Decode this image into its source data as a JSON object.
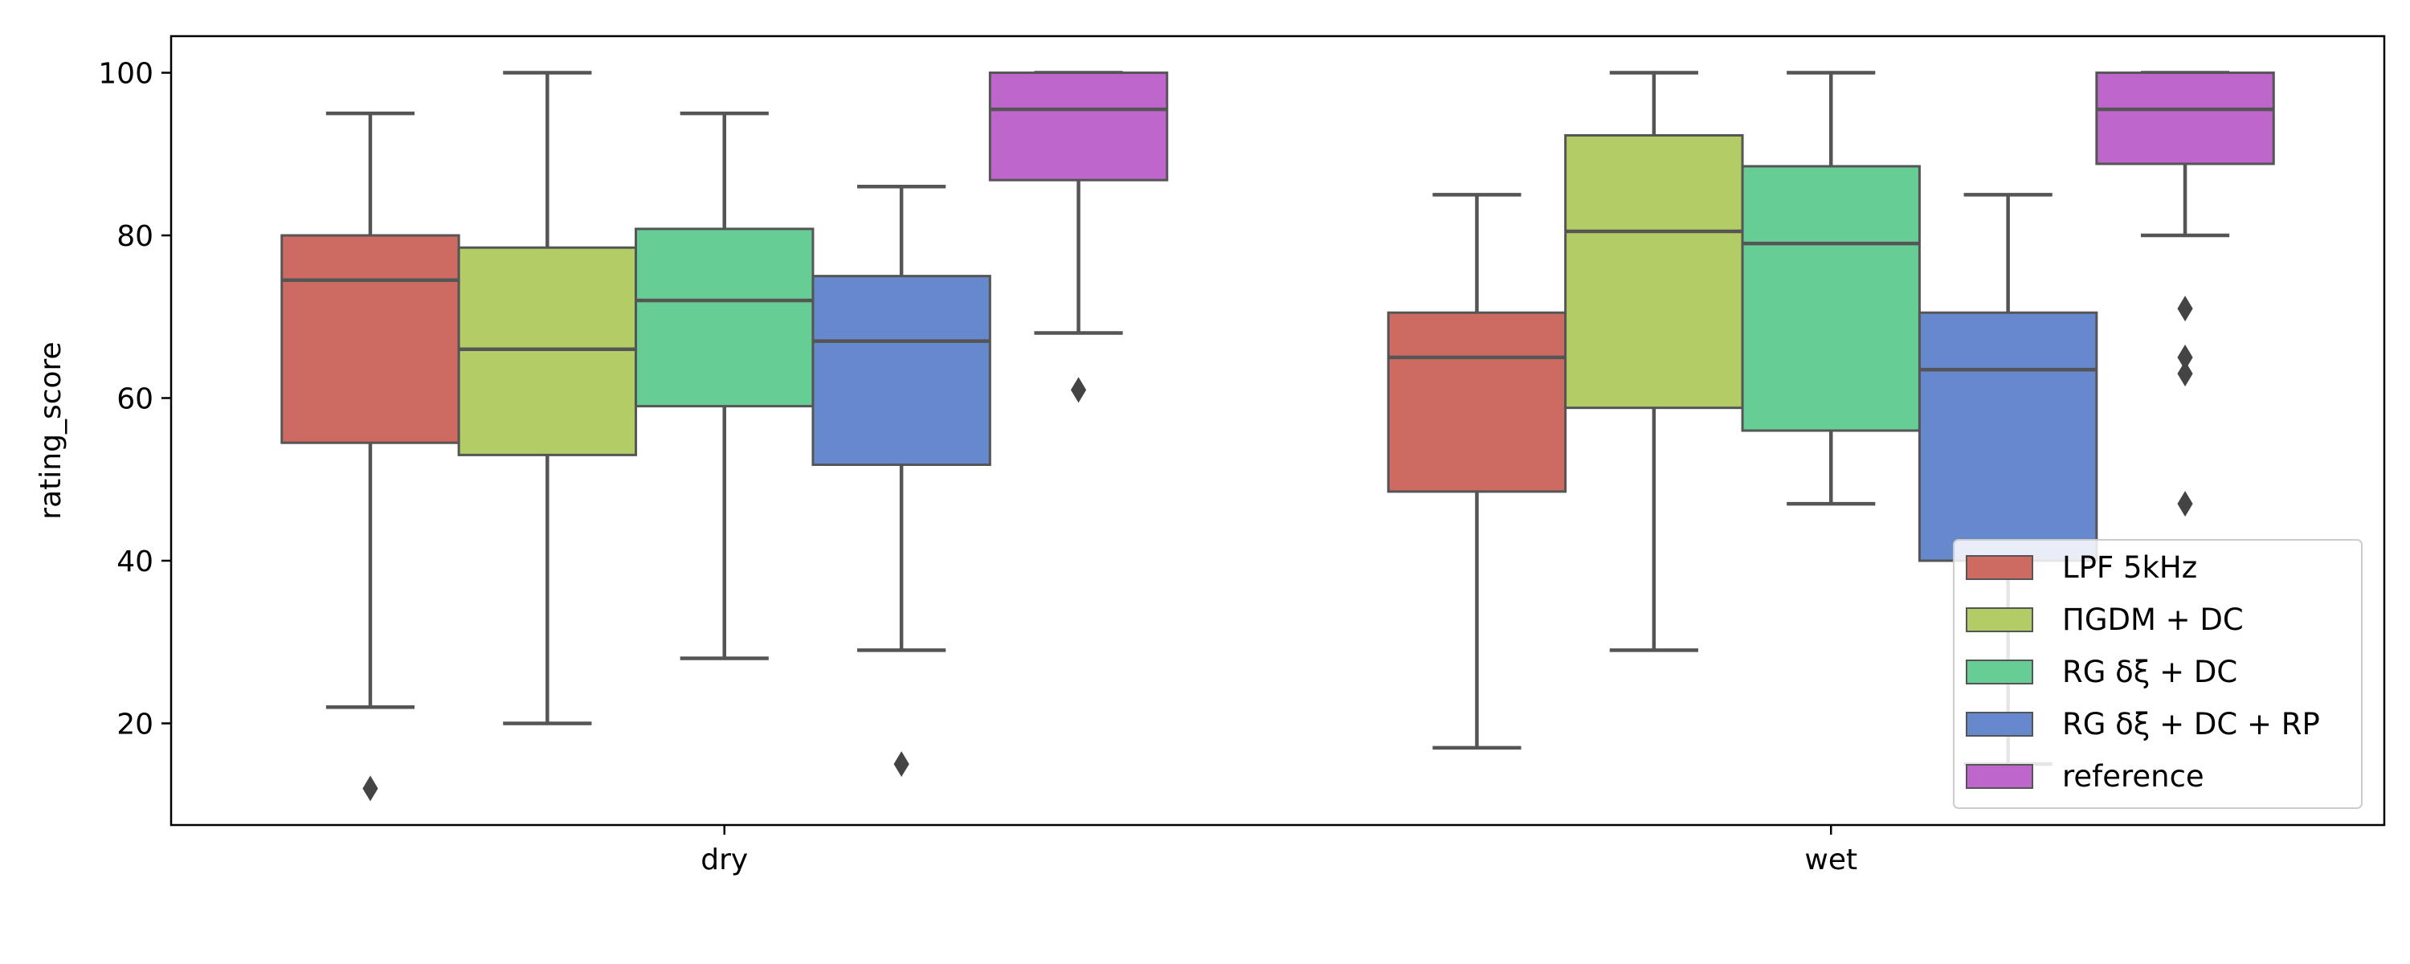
{
  "chart_data": {
    "type": "box",
    "title": "",
    "xlabel": "",
    "ylabel": "rating_score",
    "ylim": [
      7.5,
      104.5
    ],
    "yticks": [
      20,
      40,
      60,
      80,
      100
    ],
    "categories": [
      "dry",
      "wet"
    ],
    "grid": false,
    "legend_position": "lower-right",
    "series": [
      {
        "name": "LPF 5kHz",
        "legend_label": "LPF 5kHz",
        "color": "#cd6b63",
        "boxes": [
          {
            "whisker_low": 22,
            "q1": 54.5,
            "median": 74.5,
            "q3": 80,
            "whisker_high": 95,
            "outliers": [
              12
            ]
          },
          {
            "whisker_low": 17,
            "q1": 48.5,
            "median": 65,
            "q3": 70.5,
            "whisker_high": 85,
            "outliers": []
          }
        ]
      },
      {
        "name": "ΠGDM + DC",
        "legend_label": "ΠGDM + DC",
        "color": "#b2cd66",
        "boxes": [
          {
            "whisker_low": 20,
            "q1": 53,
            "median": 66,
            "q3": 78.5,
            "whisker_high": 100,
            "outliers": []
          },
          {
            "whisker_low": 29,
            "q1": 58.8,
            "median": 80.5,
            "q3": 92.3,
            "whisker_high": 100,
            "outliers": []
          }
        ]
      },
      {
        "name": "RG δξ + DC",
        "legend_label": "RG δξ + DC",
        "color": "#66cd95",
        "boxes": [
          {
            "whisker_low": 28,
            "q1": 59,
            "median": 72,
            "q3": 80.8,
            "whisker_high": 95,
            "outliers": []
          },
          {
            "whisker_low": 47,
            "q1": 56,
            "median": 79,
            "q3": 88.5,
            "whisker_high": 100,
            "outliers": []
          }
        ]
      },
      {
        "name": "RG δξ + DC + RP",
        "legend_label": "RG δξ + DC + RP",
        "color": "#6688cd",
        "boxes": [
          {
            "whisker_low": 29,
            "q1": 51.8,
            "median": 67,
            "q3": 75,
            "whisker_high": 86,
            "outliers": [
              15
            ]
          },
          {
            "whisker_low": 15,
            "q1": 40,
            "median": 63.5,
            "q3": 70.5,
            "whisker_high": 85,
            "outliers": []
          }
        ]
      },
      {
        "name": "reference",
        "legend_label": "reference",
        "color": "#bf66cd",
        "boxes": [
          {
            "whisker_low": 68,
            "q1": 86.8,
            "median": 95.5,
            "q3": 100,
            "whisker_high": 100,
            "outliers": [
              61
            ]
          },
          {
            "whisker_low": 80,
            "q1": 88.8,
            "median": 95.5,
            "q3": 100,
            "whisker_high": 100,
            "outliers": [
              71,
              65,
              63,
              47
            ]
          }
        ]
      }
    ]
  }
}
